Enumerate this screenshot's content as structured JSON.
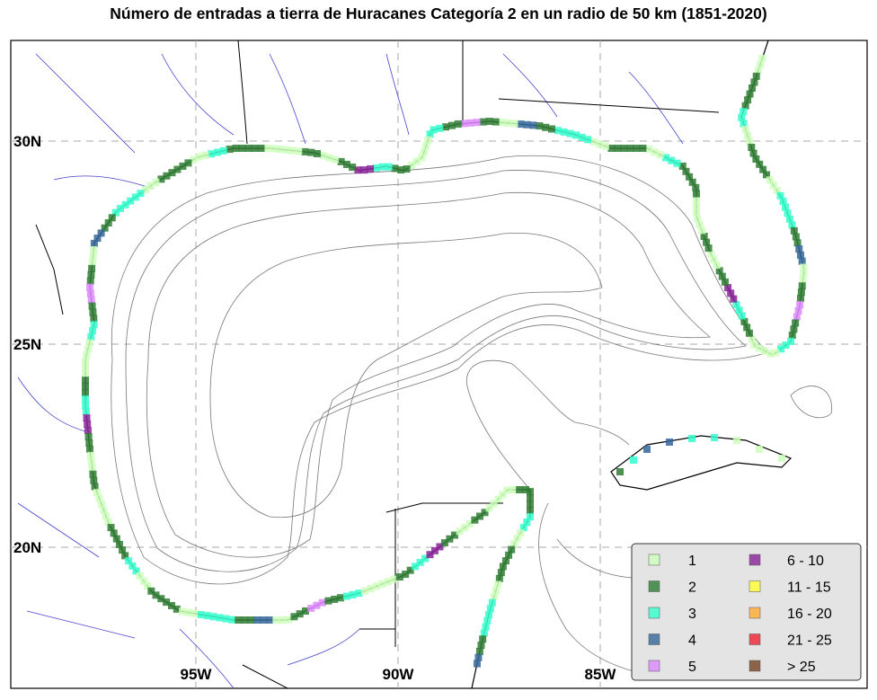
{
  "title": "Número de entradas a tierra de Huracanes Categoría 2 en un radio de 50 km (1851-2020)",
  "grid": {
    "latitudes": [
      {
        "value": 30,
        "label": "30N"
      },
      {
        "value": 25,
        "label": "25N"
      },
      {
        "value": 20,
        "label": "20N"
      }
    ],
    "longitudes": [
      {
        "value": 95,
        "label": "95W"
      },
      {
        "value": 90,
        "label": "90W"
      },
      {
        "value": 85,
        "label": "85W"
      }
    ]
  },
  "legend": {
    "items": [
      {
        "label": "1",
        "color": "#ccffbb"
      },
      {
        "label": "2",
        "color": "#2e7d32"
      },
      {
        "label": "3",
        "color": "#33ffcc"
      },
      {
        "label": "4",
        "color": "#336699"
      },
      {
        "label": "5",
        "color": "#dd88ff"
      },
      {
        "label": "6 - 10",
        "color": "#882299"
      },
      {
        "label": "11 - 15",
        "color": "#ffff33"
      },
      {
        "label": "16 - 20",
        "color": "#ffaa33"
      },
      {
        "label": "21 - 25",
        "color": "#ee2233"
      },
      {
        "label": "> 25",
        "color": "#774422"
      }
    ]
  }
}
